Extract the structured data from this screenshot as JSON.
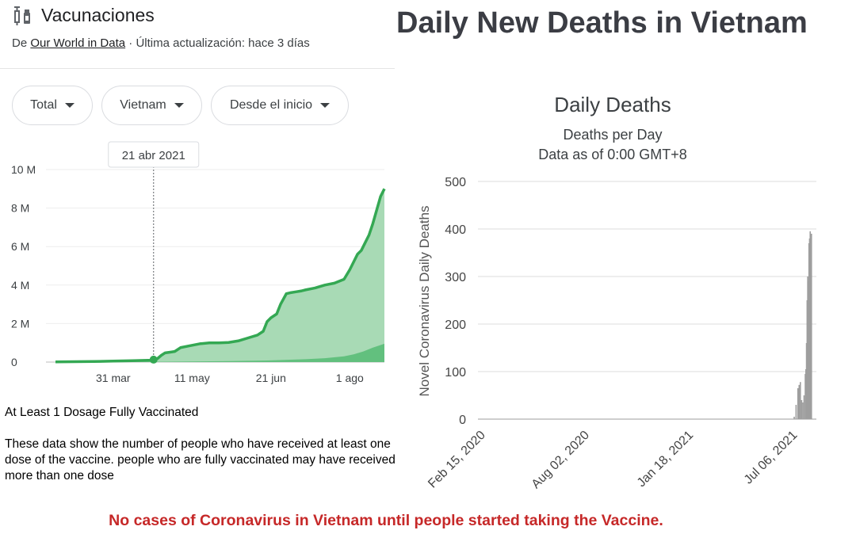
{
  "left_panel": {
    "title": "Vacunaciones",
    "icon": "syringe-vial-icon",
    "source_prefix": "De ",
    "source_link": "Our World in Data",
    "source_suffix": " · Última actualización: hace 3 días",
    "filters": [
      {
        "label": "Total"
      },
      {
        "label": "Vietnam"
      },
      {
        "label": "Desde el inicio"
      }
    ],
    "dataset_heading": "At Least 1 Dosage Fully Vaccinated",
    "note": "These data show the number of people who have received at least one dose of the vaccine. people who are fully vaccinated may have received more than one dose"
  },
  "right_panel": {
    "headline": "Daily New Deaths in Vietnam"
  },
  "caption": "No cases of Coronavirus in Vietnam until people started taking the Vaccine.",
  "colors": {
    "green_line": "#34a853",
    "green_fill": "#a8dab5",
    "green_full": "#62c07e",
    "bar_gray": "#9e9e9e",
    "caption_red": "#c62828"
  },
  "chart_data": [
    {
      "type": "area",
      "tooltip": "21 abr 2021",
      "x_tick_labels": [
        "31 mar",
        "11 may",
        "21 jun",
        "1 ago"
      ],
      "y_tick_labels": [
        "0",
        "2 M",
        "4 M",
        "6 M",
        "8 M",
        "10 M"
      ],
      "ylim": [
        0,
        10
      ],
      "x_domain_days": [
        0,
        171
      ],
      "x_tick_days": [
        30,
        71,
        112,
        153
      ],
      "tooltip_day": 51,
      "series": [
        {
          "x": [
            0,
            10,
            20,
            30,
            40,
            50,
            53,
            55,
            57,
            60,
            62,
            65,
            70,
            75,
            80,
            85,
            90,
            95,
            100,
            105,
            108,
            110,
            112,
            115,
            117,
            120,
            122,
            125,
            128,
            130,
            135,
            140,
            145,
            150,
            153,
            155,
            157,
            159,
            161,
            163,
            165,
            167,
            169,
            171
          ],
          "values": [
            0.01,
            0.02,
            0.03,
            0.05,
            0.07,
            0.1,
            0.18,
            0.35,
            0.48,
            0.52,
            0.55,
            0.75,
            0.85,
            0.95,
            1.0,
            1.0,
            1.02,
            1.1,
            1.25,
            1.4,
            1.6,
            2.1,
            2.3,
            2.5,
            3.0,
            3.55,
            3.6,
            3.65,
            3.7,
            3.75,
            3.85,
            4.0,
            4.1,
            4.3,
            4.8,
            5.2,
            5.6,
            5.8,
            6.2,
            6.6,
            7.2,
            7.9,
            8.6,
            9.0
          ]
        },
        {
          "x": [
            0,
            30,
            60,
            90,
            110,
            130,
            140,
            150,
            155,
            160,
            165,
            171
          ],
          "values": [
            0,
            0.0,
            0.02,
            0.05,
            0.08,
            0.15,
            0.2,
            0.3,
            0.4,
            0.55,
            0.75,
            0.95
          ]
        }
      ]
    },
    {
      "type": "bar",
      "title": "Daily Deaths",
      "subtitle": "Deaths per Day",
      "subtitle2": "Data as of 0:00 GMT+8",
      "ylabel": "Novel Coronavirus Daily Deaths",
      "ylim": [
        0,
        500
      ],
      "y_ticks": [
        0,
        100,
        200,
        300,
        400,
        500
      ],
      "x_tick_labels": [
        "Feb 15, 2020",
        "Aug 02, 2020",
        "Jan 18, 2021",
        "Jul 06, 2021"
      ],
      "x_tick_days": [
        0,
        169,
        338,
        507
      ],
      "x_domain_days": [
        0,
        550
      ],
      "series": [
        {
          "x": [
            514,
            517,
            520,
            522,
            524,
            526,
            528,
            530,
            532,
            533,
            534,
            535,
            536,
            537,
            538,
            539,
            540,
            541,
            542
          ],
          "values": [
            5,
            30,
            65,
            72,
            78,
            40,
            35,
            50,
            95,
            105,
            160,
            250,
            300,
            290,
            370,
            380,
            395,
            385,
            390
          ]
        }
      ]
    }
  ]
}
